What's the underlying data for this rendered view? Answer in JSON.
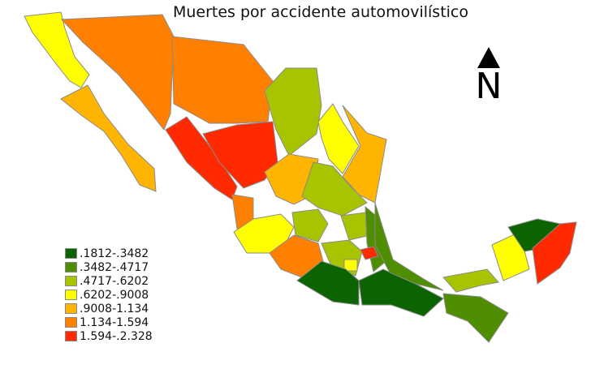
{
  "title": "Muertes por accidente automovilístico",
  "north_label": "N",
  "colors": [
    "#0b6400",
    "#4f8e00",
    "#a8c400",
    "#ffff00",
    "#ffb400",
    "#ff8000",
    "#ff2a00"
  ],
  "legend": [
    {
      "label": ".1812-.3482",
      "color": "#0b6400"
    },
    {
      "label": ".3482-.4717",
      "color": "#4f8e00"
    },
    {
      "label": ".4717-.6202",
      "color": "#a8c400"
    },
    {
      "label": ".6202-.9008",
      "color": "#ffff00"
    },
    {
      "label": ".9008-1.134",
      "color": "#ffb400"
    },
    {
      "label": "1.134-1.594",
      "color": "#ff8000"
    },
    {
      "label": "1.594-.2.328",
      "color": "#ff2a00"
    }
  ]
}
